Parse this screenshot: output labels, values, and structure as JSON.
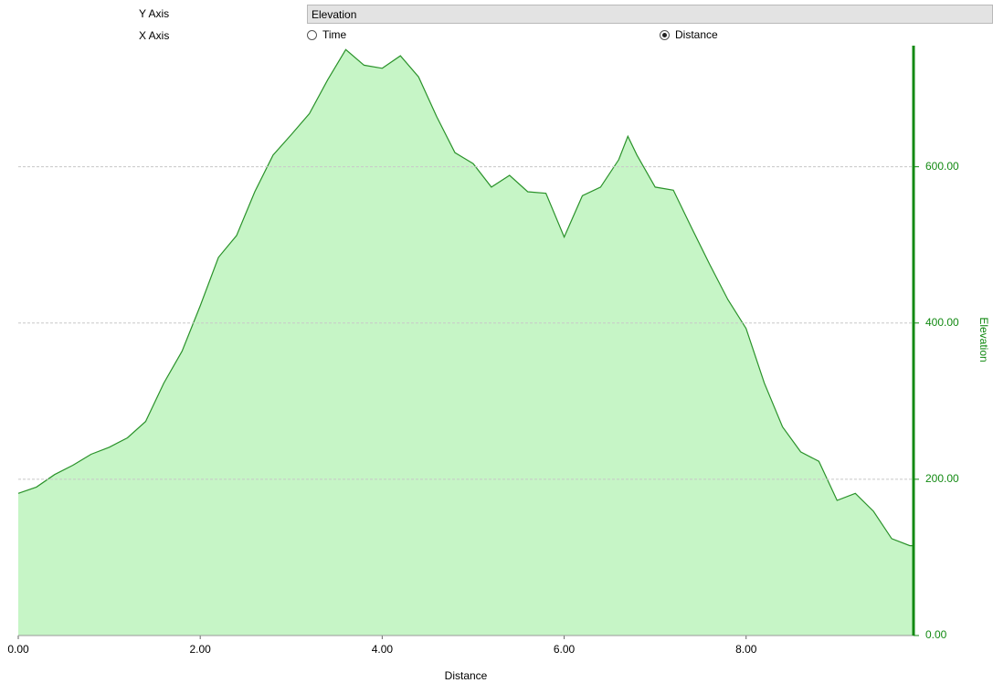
{
  "controls": {
    "y_axis_label": "Y Axis",
    "y_axis_value": "Elevation",
    "x_axis_label": "X Axis",
    "x_axis_options": [
      {
        "label": "Time",
        "selected": false
      },
      {
        "label": "Distance",
        "selected": true
      }
    ]
  },
  "chart_data": {
    "type": "area",
    "x_label": "Distance",
    "y_label": "Elevation",
    "x": [
      0,
      0.2,
      0.4,
      0.6,
      0.8,
      1.0,
      1.2,
      1.4,
      1.6,
      1.8,
      2.0,
      2.2,
      2.4,
      2.6,
      2.8,
      3.0,
      3.2,
      3.4,
      3.6,
      3.8,
      4.0,
      4.2,
      4.4,
      4.6,
      4.8,
      5.0,
      5.2,
      5.4,
      5.6,
      5.8,
      6.0,
      6.2,
      6.4,
      6.6,
      6.7,
      6.8,
      7.0,
      7.2,
      7.4,
      7.6,
      7.8,
      8.0,
      8.2,
      8.4,
      8.6,
      8.8,
      9.0,
      9.2,
      9.4,
      9.6,
      9.8,
      9.84
    ],
    "values": [
      182,
      190,
      206,
      218,
      232,
      241,
      253,
      274,
      323,
      364,
      422,
      484,
      512,
      568,
      615,
      641,
      668,
      711,
      750,
      730,
      726,
      742,
      715,
      664,
      618,
      604,
      574,
      589,
      568,
      566,
      510,
      563,
      574,
      609,
      639,
      615,
      574,
      570,
      522,
      475,
      430,
      393,
      323,
      267,
      235,
      223,
      173,
      182,
      159,
      124,
      115,
      115
    ],
    "line_color": "#2a922a",
    "fill_color": "#c6f5c6",
    "axis_color": "#138a13",
    "xlim": [
      0,
      9.84
    ],
    "ylim": [
      0,
      755
    ],
    "xticks": [
      {
        "value": 0,
        "label": "0.00"
      },
      {
        "value": 2,
        "label": "2.00"
      },
      {
        "value": 4,
        "label": "4.00"
      },
      {
        "value": 6,
        "label": "6.00"
      },
      {
        "value": 8,
        "label": "8.00"
      }
    ],
    "yticks": [
      {
        "value": 0,
        "label": "0.00"
      },
      {
        "value": 200,
        "label": "200.00"
      },
      {
        "value": 400,
        "label": "400.00"
      },
      {
        "value": 600,
        "label": "600.00"
      }
    ],
    "grid": true
  }
}
